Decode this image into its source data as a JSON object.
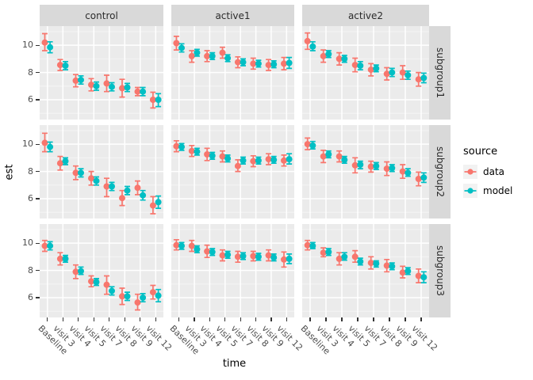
{
  "figure": {
    "xlabel": "time",
    "ylabel": "est",
    "legend": {
      "title": "source",
      "entries": [
        {
          "label": "data",
          "color": "#F8766D"
        },
        {
          "label": "model",
          "color": "#00BFC4"
        }
      ]
    }
  },
  "colors": {
    "data_series": "#F8766D",
    "model_series": "#00BFC4",
    "panel_bg": "#EBEBEB",
    "strip_bg": "#D9D9D9",
    "grid_major": "#FFFFFF",
    "grid_minor": "#F6F6F6",
    "tick_text": "#4D4D4D",
    "tick_mark": "#333333"
  },
  "chart_data": {
    "type": "scatter",
    "subtype": "faceted-pointrange-with-errorbars",
    "title": "",
    "xlabel": "time",
    "ylabel": "est",
    "facet_cols": [
      "control",
      "active1",
      "active2"
    ],
    "facet_rows": [
      "subgroup1",
      "subgroup2",
      "subgroup3"
    ],
    "categories": [
      "Baseline",
      "visit 3",
      "visit 4",
      "visit 5",
      "visit 7",
      "visit 8",
      "visit 9",
      "visit 12"
    ],
    "y_ticks": [
      6,
      8,
      10
    ],
    "ylim": [
      4.55,
      11.4
    ],
    "grid": true,
    "legend_position": "right",
    "series_colors": {
      "data": "#F8766D",
      "model": "#00BFC4"
    },
    "panels": [
      {
        "treatment": "control",
        "subgroup": "subgroup1",
        "data": {
          "est": [
            10.2,
            8.55,
            7.4,
            7.1,
            7.2,
            6.85,
            6.6,
            6.0
          ],
          "lo": [
            9.6,
            8.15,
            6.95,
            6.65,
            6.6,
            6.2,
            6.3,
            5.4
          ],
          "hi": [
            10.85,
            8.95,
            7.85,
            7.55,
            7.8,
            7.5,
            6.9,
            6.55
          ]
        },
        "model": {
          "est": [
            9.85,
            8.5,
            7.45,
            7.0,
            6.95,
            6.9,
            6.6,
            6.0
          ],
          "lo": [
            9.45,
            8.2,
            7.15,
            6.7,
            6.65,
            6.6,
            6.3,
            5.5
          ],
          "hi": [
            10.25,
            8.8,
            7.75,
            7.3,
            7.25,
            7.2,
            6.9,
            6.45
          ]
        }
      },
      {
        "treatment": "active1",
        "subgroup": "subgroup1",
        "data": {
          "est": [
            10.15,
            9.2,
            9.2,
            9.45,
            8.75,
            8.65,
            8.55,
            8.65
          ],
          "lo": [
            9.65,
            8.75,
            8.8,
            9.05,
            8.35,
            8.25,
            8.15,
            8.2
          ],
          "hi": [
            10.65,
            9.6,
            9.6,
            9.85,
            9.15,
            9.05,
            8.95,
            9.1
          ]
        },
        "model": {
          "est": [
            9.8,
            9.45,
            9.2,
            9.05,
            8.75,
            8.65,
            8.6,
            8.7
          ],
          "lo": [
            9.5,
            9.2,
            8.95,
            8.8,
            8.5,
            8.4,
            8.35,
            8.3
          ],
          "hi": [
            10.1,
            9.7,
            9.45,
            9.3,
            9.0,
            8.9,
            8.85,
            9.1
          ]
        }
      },
      {
        "treatment": "active2",
        "subgroup": "subgroup1",
        "data": {
          "est": [
            10.3,
            9.2,
            9.0,
            8.55,
            8.2,
            7.9,
            8.0,
            7.5
          ],
          "lo": [
            9.7,
            8.75,
            8.55,
            8.05,
            7.75,
            7.45,
            7.5,
            7.0
          ],
          "hi": [
            10.9,
            9.65,
            9.45,
            9.05,
            8.65,
            8.35,
            8.5,
            8.0
          ]
        },
        "model": {
          "est": [
            9.9,
            9.35,
            9.0,
            8.5,
            8.3,
            8.0,
            7.8,
            7.6
          ],
          "lo": [
            9.6,
            9.1,
            8.75,
            8.2,
            8.05,
            7.7,
            7.5,
            7.25
          ],
          "hi": [
            10.25,
            9.6,
            9.25,
            8.8,
            8.55,
            8.3,
            8.1,
            7.95
          ]
        }
      },
      {
        "treatment": "control",
        "subgroup": "subgroup2",
        "data": {
          "est": [
            10.1,
            8.6,
            7.9,
            7.5,
            6.9,
            6.05,
            6.8,
            5.5
          ],
          "lo": [
            9.45,
            8.1,
            7.4,
            7.0,
            6.15,
            5.5,
            6.3,
            4.9
          ],
          "hi": [
            10.8,
            9.1,
            8.4,
            8.0,
            7.5,
            6.6,
            7.3,
            6.15
          ]
        },
        "model": {
          "est": [
            9.8,
            8.75,
            7.9,
            7.3,
            6.9,
            6.6,
            6.25,
            5.75
          ],
          "lo": [
            9.45,
            8.5,
            7.6,
            7.0,
            6.6,
            6.3,
            5.9,
            5.3
          ],
          "hi": [
            10.15,
            9.0,
            8.2,
            7.6,
            7.2,
            6.9,
            6.6,
            6.2
          ]
        }
      },
      {
        "treatment": "active1",
        "subgroup": "subgroup2",
        "data": {
          "est": [
            9.85,
            9.5,
            9.25,
            9.1,
            8.4,
            8.75,
            8.9,
            8.8
          ],
          "lo": [
            9.45,
            9.1,
            8.8,
            8.7,
            8.0,
            8.35,
            8.5,
            8.4
          ],
          "hi": [
            10.25,
            9.9,
            9.7,
            9.5,
            8.85,
            9.15,
            9.3,
            9.2
          ]
        },
        "model": {
          "est": [
            9.8,
            9.45,
            9.15,
            8.95,
            8.8,
            8.8,
            8.85,
            8.9
          ],
          "lo": [
            9.55,
            9.2,
            8.9,
            8.7,
            8.55,
            8.55,
            8.6,
            8.55
          ],
          "hi": [
            10.05,
            9.7,
            9.4,
            9.2,
            9.05,
            9.05,
            9.1,
            9.3
          ]
        }
      },
      {
        "treatment": "active2",
        "subgroup": "subgroup2",
        "data": {
          "est": [
            10.0,
            9.1,
            9.1,
            8.45,
            8.35,
            8.2,
            8.0,
            7.45
          ],
          "lo": [
            9.6,
            8.65,
            8.7,
            7.9,
            7.95,
            7.7,
            7.5,
            6.95
          ],
          "hi": [
            10.45,
            9.55,
            9.5,
            9.0,
            8.75,
            8.7,
            8.5,
            7.95
          ]
        },
        "model": {
          "est": [
            9.9,
            9.25,
            8.85,
            8.5,
            8.4,
            8.25,
            7.9,
            7.55
          ],
          "lo": [
            9.65,
            9.0,
            8.6,
            8.2,
            8.15,
            8.0,
            7.65,
            7.2
          ],
          "hi": [
            10.2,
            9.5,
            9.1,
            8.75,
            8.65,
            8.5,
            8.2,
            7.9
          ]
        }
      },
      {
        "treatment": "control",
        "subgroup": "subgroup3",
        "data": {
          "est": [
            9.8,
            8.85,
            7.9,
            7.2,
            6.95,
            6.1,
            5.65,
            6.4
          ],
          "lo": [
            9.4,
            8.4,
            7.4,
            6.8,
            6.25,
            5.5,
            5.1,
            5.9
          ],
          "hi": [
            10.2,
            9.3,
            8.4,
            7.6,
            7.6,
            6.7,
            6.25,
            6.9
          ]
        },
        "model": {
          "est": [
            9.8,
            8.85,
            7.95,
            7.15,
            6.5,
            6.1,
            6.0,
            6.15
          ],
          "lo": [
            9.5,
            8.6,
            7.7,
            6.9,
            6.2,
            5.8,
            5.7,
            5.7
          ],
          "hi": [
            10.1,
            9.1,
            8.25,
            7.4,
            6.8,
            6.4,
            6.3,
            6.6
          ]
        }
      },
      {
        "treatment": "active1",
        "subgroup": "subgroup3",
        "data": {
          "est": [
            9.85,
            9.8,
            9.4,
            9.1,
            9.0,
            9.05,
            9.1,
            8.8
          ],
          "lo": [
            9.5,
            9.4,
            8.95,
            8.7,
            8.6,
            8.7,
            8.7,
            8.25
          ],
          "hi": [
            10.25,
            10.2,
            9.85,
            9.5,
            9.4,
            9.4,
            9.5,
            9.35
          ]
        },
        "model": {
          "est": [
            9.8,
            9.55,
            9.35,
            9.15,
            9.05,
            9.0,
            8.95,
            8.85
          ],
          "lo": [
            9.55,
            9.3,
            9.1,
            8.9,
            8.8,
            8.75,
            8.7,
            8.5
          ],
          "hi": [
            10.05,
            9.8,
            9.6,
            9.4,
            9.3,
            9.25,
            9.2,
            9.2
          ]
        }
      },
      {
        "treatment": "active2",
        "subgroup": "subgroup3",
        "data": {
          "est": [
            9.85,
            9.3,
            8.85,
            9.0,
            8.55,
            8.35,
            7.85,
            7.6
          ],
          "lo": [
            9.5,
            9.0,
            8.4,
            8.6,
            8.1,
            7.9,
            7.45,
            7.1
          ],
          "hi": [
            10.2,
            9.65,
            9.3,
            9.45,
            9.0,
            8.8,
            8.3,
            8.1
          ]
        },
        "model": {
          "est": [
            9.8,
            9.35,
            9.0,
            8.65,
            8.5,
            8.3,
            7.95,
            7.5
          ],
          "lo": [
            9.6,
            9.1,
            8.75,
            8.4,
            8.25,
            8.05,
            7.7,
            7.1
          ],
          "hi": [
            10.05,
            9.6,
            9.3,
            8.9,
            8.7,
            8.55,
            8.2,
            7.9
          ]
        }
      }
    ]
  }
}
